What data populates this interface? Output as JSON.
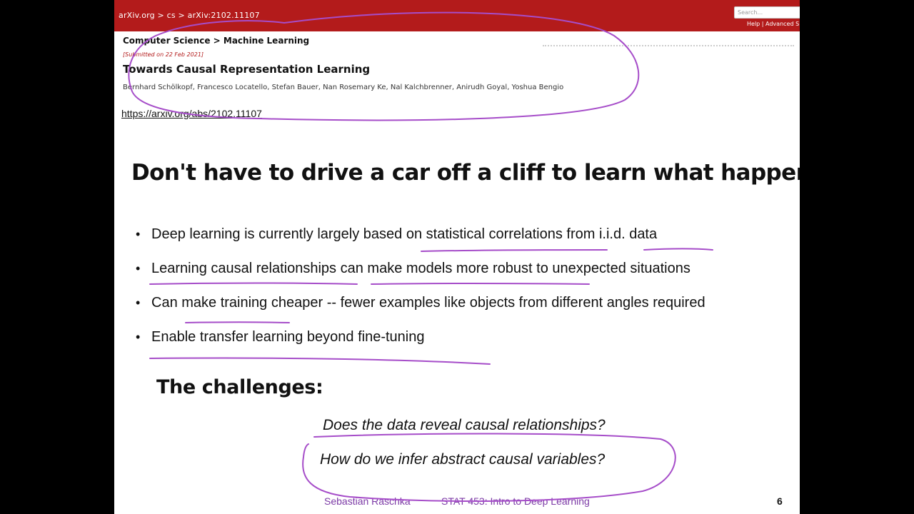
{
  "arxiv": {
    "breadcrumbs": "arXiv.org > cs > arXiv:2102.11107",
    "search_placeholder": "Search...",
    "help_links": "Help | Advanced S",
    "subject": "Computer Science > Machine Learning",
    "submitted": "[Submitted on 22 Feb 2021]",
    "title": "Towards Causal Representation Learning",
    "authors": "Bernhard Schölkopf, Francesco Locatello, Stefan Bauer, Nan Rosemary Ke, Nal Kalchbrenner, Anirudh Goyal, Yoshua Bengio"
  },
  "url": "https://arxiv.org/abs/2102.11107",
  "heading": "Don't have to drive a car off a cliff to learn what happens",
  "bullet_symbol": "•",
  "bullets": [
    "Deep learning is currently largely based on statistical correlations from i.i.d. data",
    "Learning causal relationships can make models more robust to unexpected situations",
    "Can make training cheaper -- fewer examples like objects from different angles required",
    "Enable transfer learning beyond fine-tuning"
  ],
  "challenges_heading": "The challenges:",
  "questions": [
    "Does the data reveal causal relationships?",
    "How do we infer abstract causal variables?"
  ],
  "footer": {
    "author": "Sebastian Raschka",
    "course": "STAT 453: Intro to Deep Learning",
    "page": "6"
  },
  "colors": {
    "arxiv_red": "#b31b1b",
    "annotation_ink": "#a64dc9",
    "footer_text": "#7c3aa6"
  }
}
